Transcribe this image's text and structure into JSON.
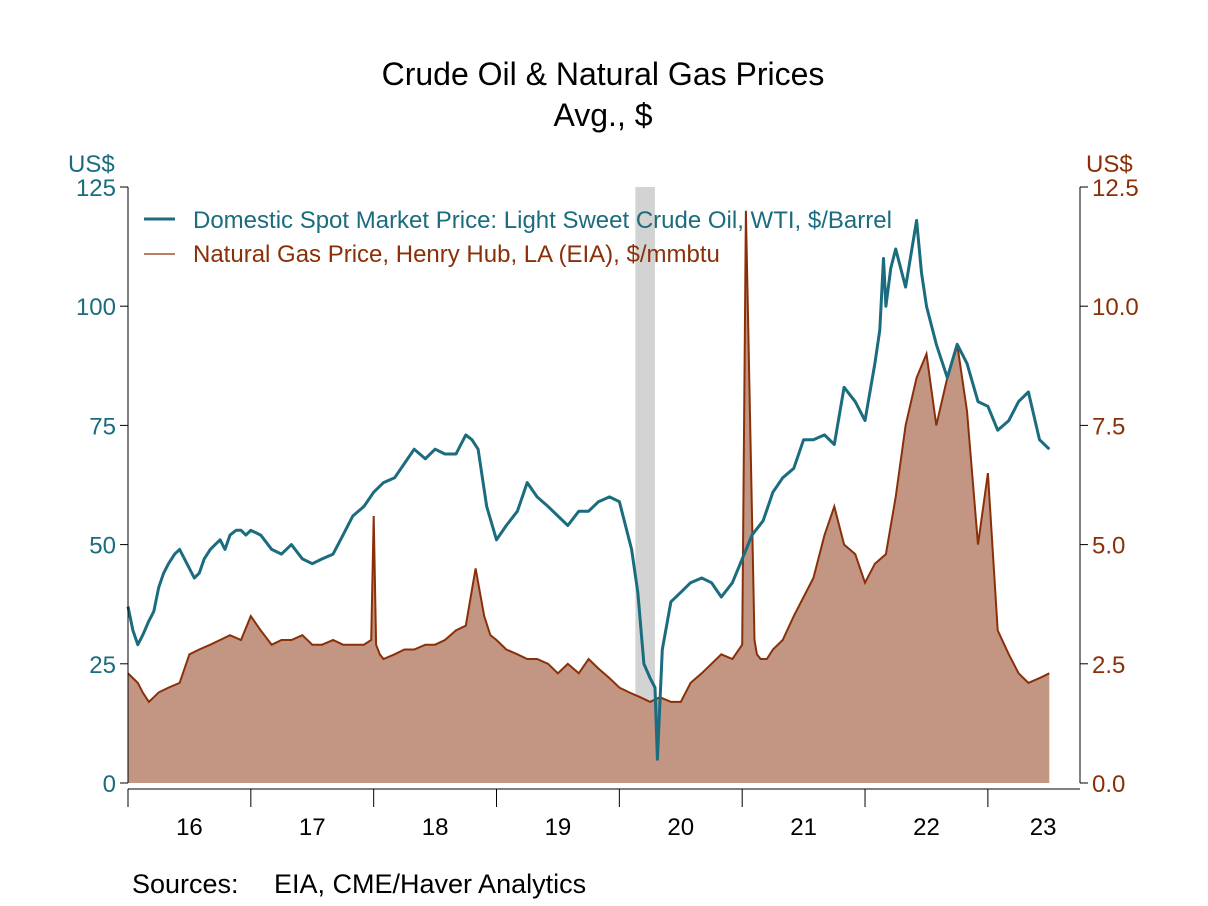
{
  "chart_data": {
    "type": "area",
    "title": "Crude Oil & Natural Gas Prices",
    "subtitle": "Avg., $",
    "left_axis": {
      "unit": "US$",
      "ylim": [
        0,
        125
      ],
      "ticks": [
        0,
        25,
        50,
        75,
        100,
        125
      ],
      "tick_labels": [
        "0",
        "25",
        "50",
        "75",
        "100",
        "125"
      ]
    },
    "right_axis": {
      "unit": "US$",
      "ylim": [
        0,
        12.5
      ],
      "ticks": [
        0,
        2.5,
        5,
        7.5,
        10,
        12.5
      ],
      "tick_labels": [
        "0.0",
        "2.5",
        "5.0",
        "7.5",
        "10.0",
        "12.5"
      ]
    },
    "x_axis": {
      "xlim": [
        2016.0,
        2023.75
      ],
      "year_ticks": [
        2016,
        2017,
        2018,
        2019,
        2020,
        2021,
        2022,
        2023
      ],
      "labels": [
        {
          "text": "16",
          "x": 2016.5
        },
        {
          "text": "17",
          "x": 2017.5
        },
        {
          "text": "18",
          "x": 2018.5
        },
        {
          "text": "19",
          "x": 2019.5
        },
        {
          "text": "20",
          "x": 2020.5
        },
        {
          "text": "21",
          "x": 2021.5
        },
        {
          "text": "22",
          "x": 2022.5
        },
        {
          "text": "23",
          "x": 2023.45
        }
      ]
    },
    "recession": {
      "start": 2020.13,
      "end": 2020.29
    },
    "grid": false,
    "legend_placement": "top-left",
    "series": [
      {
        "name": "Domestic Spot Market Price: Light Sweet Crude Oil, WTI, $/Barrel",
        "axis": "left",
        "style": "line",
        "x": [
          2016.0,
          2016.04,
          2016.08,
          2016.12,
          2016.17,
          2016.21,
          2016.25,
          2016.29,
          2016.33,
          2016.38,
          2016.42,
          2016.46,
          2016.5,
          2016.54,
          2016.58,
          2016.62,
          2016.67,
          2016.71,
          2016.75,
          2016.79,
          2016.83,
          2016.88,
          2016.92,
          2016.96,
          2017.0,
          2017.08,
          2017.17,
          2017.25,
          2017.33,
          2017.42,
          2017.5,
          2017.58,
          2017.67,
          2017.75,
          2017.83,
          2017.92,
          2018.0,
          2018.08,
          2018.17,
          2018.25,
          2018.33,
          2018.42,
          2018.5,
          2018.58,
          2018.67,
          2018.75,
          2018.8,
          2018.85,
          2018.92,
          2019.0,
          2019.08,
          2019.17,
          2019.25,
          2019.33,
          2019.42,
          2019.5,
          2019.58,
          2019.67,
          2019.75,
          2019.83,
          2019.92,
          2020.0,
          2020.06,
          2020.1,
          2020.15,
          2020.2,
          2020.25,
          2020.29,
          2020.31,
          2020.35,
          2020.42,
          2020.5,
          2020.58,
          2020.67,
          2020.75,
          2020.83,
          2020.92,
          2021.0,
          2021.08,
          2021.17,
          2021.25,
          2021.33,
          2021.42,
          2021.5,
          2021.58,
          2021.67,
          2021.75,
          2021.83,
          2021.92,
          2022.0,
          2022.08,
          2022.12,
          2022.15,
          2022.17,
          2022.21,
          2022.25,
          2022.33,
          2022.42,
          2022.46,
          2022.5,
          2022.58,
          2022.67,
          2022.75,
          2022.83,
          2022.92,
          2023.0,
          2023.08,
          2023.17,
          2023.25,
          2023.33,
          2023.42,
          2023.5
        ],
        "values": [
          37,
          32,
          29,
          31,
          34,
          36,
          41,
          44,
          46,
          48,
          49,
          47,
          45,
          43,
          44,
          47,
          49,
          50,
          51,
          49,
          52,
          53,
          53,
          52,
          53,
          52,
          49,
          48,
          50,
          47,
          46,
          47,
          48,
          52,
          56,
          58,
          61,
          63,
          64,
          67,
          70,
          68,
          70,
          69,
          69,
          73,
          72,
          70,
          58,
          51,
          54,
          57,
          63,
          60,
          58,
          56,
          54,
          57,
          57,
          59,
          60,
          59,
          53,
          49,
          40,
          25,
          22,
          20,
          5,
          28,
          38,
          40,
          42,
          43,
          42,
          39,
          42,
          47,
          52,
          55,
          61,
          64,
          66,
          72,
          72,
          73,
          71,
          83,
          80,
          76,
          88,
          95,
          110,
          100,
          108,
          112,
          104,
          118,
          107,
          100,
          92,
          85,
          92,
          88,
          80,
          79,
          74,
          76,
          80,
          82,
          72,
          70
        ]
      },
      {
        "name": "Natural Gas Price, Henry Hub, LA (EIA), $/mmbtu",
        "axis": "right",
        "style": "area",
        "x": [
          2016.0,
          2016.04,
          2016.08,
          2016.12,
          2016.17,
          2016.21,
          2016.25,
          2016.33,
          2016.42,
          2016.5,
          2016.58,
          2016.67,
          2016.75,
          2016.83,
          2016.92,
          2017.0,
          2017.08,
          2017.17,
          2017.25,
          2017.33,
          2017.42,
          2017.5,
          2017.58,
          2017.67,
          2017.75,
          2017.92,
          2017.98,
          2018.0,
          2018.02,
          2018.05,
          2018.08,
          2018.17,
          2018.25,
          2018.33,
          2018.42,
          2018.5,
          2018.58,
          2018.67,
          2018.75,
          2018.83,
          2018.9,
          2018.95,
          2019.0,
          2019.08,
          2019.17,
          2019.25,
          2019.33,
          2019.42,
          2019.5,
          2019.58,
          2019.67,
          2019.75,
          2019.83,
          2019.92,
          2020.0,
          2020.08,
          2020.17,
          2020.25,
          2020.33,
          2020.42,
          2020.5,
          2020.58,
          2020.67,
          2020.75,
          2020.83,
          2020.92,
          2021.0,
          2021.03,
          2021.1,
          2021.12,
          2021.15,
          2021.2,
          2021.25,
          2021.33,
          2021.42,
          2021.5,
          2021.58,
          2021.67,
          2021.75,
          2021.83,
          2021.92,
          2022.0,
          2022.08,
          2022.17,
          2022.25,
          2022.33,
          2022.42,
          2022.5,
          2022.58,
          2022.67,
          2022.75,
          2022.83,
          2022.92,
          2023.0,
          2023.08,
          2023.17,
          2023.25,
          2023.33,
          2023.42,
          2023.5
        ],
        "values": [
          2.3,
          2.2,
          2.1,
          1.9,
          1.7,
          1.8,
          1.9,
          2.0,
          2.1,
          2.7,
          2.8,
          2.9,
          3.0,
          3.1,
          3.0,
          3.5,
          3.2,
          2.9,
          3.0,
          3.0,
          3.1,
          2.9,
          2.9,
          3.0,
          2.9,
          2.9,
          3.0,
          5.6,
          2.9,
          2.7,
          2.6,
          2.7,
          2.8,
          2.8,
          2.9,
          2.9,
          3.0,
          3.2,
          3.3,
          4.5,
          3.5,
          3.1,
          3.0,
          2.8,
          2.7,
          2.6,
          2.6,
          2.5,
          2.3,
          2.5,
          2.3,
          2.6,
          2.4,
          2.2,
          2.0,
          1.9,
          1.8,
          1.7,
          1.8,
          1.7,
          1.7,
          2.1,
          2.3,
          2.5,
          2.7,
          2.6,
          2.9,
          12.0,
          3.0,
          2.7,
          2.6,
          2.6,
          2.8,
          3.0,
          3.5,
          3.9,
          4.3,
          5.2,
          5.8,
          5.0,
          4.8,
          4.2,
          4.6,
          4.8,
          6.0,
          7.5,
          8.5,
          9.0,
          7.5,
          8.5,
          9.2,
          7.8,
          5.0,
          6.5,
          3.2,
          2.7,
          2.3,
          2.1,
          2.2,
          2.3
        ]
      }
    ]
  },
  "source": {
    "label": "Sources:",
    "text": "EIA, CME/Haver Analytics"
  },
  "colors": {
    "oil": "#1a6c7e",
    "gas_line": "#8a3008",
    "gas_fill": "#c39683",
    "recession": "#d3d3d3",
    "left_axis": "#1a6c7e",
    "right_axis": "#8a3008"
  }
}
